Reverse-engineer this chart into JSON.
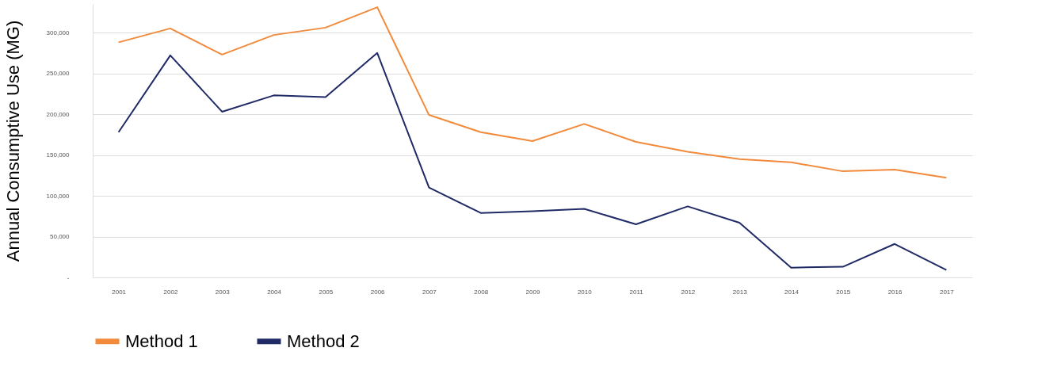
{
  "chart_data": {
    "type": "line",
    "ylabel": "Annual Consumptive Use (MG)",
    "categories": [
      "2001",
      "2002",
      "2003",
      "2004",
      "2005",
      "2006",
      "2007",
      "2008",
      "2009",
      "2010",
      "2011",
      "2012",
      "2013",
      "2014",
      "2015",
      "2016",
      "2017"
    ],
    "series": [
      {
        "name": "Method 1",
        "color": "#f28a3c",
        "values": [
          288000,
          305000,
          273000,
          297000,
          306000,
          331000,
          199000,
          178000,
          167000,
          188000,
          166000,
          154000,
          145000,
          141000,
          130000,
          132000,
          122000
        ]
      },
      {
        "name": "Method 2",
        "color": "#1f2a66",
        "values": [
          178000,
          272000,
          203000,
          223000,
          221000,
          275000,
          110000,
          79000,
          81000,
          84000,
          65000,
          87000,
          67000,
          12000,
          13000,
          41000,
          9000
        ]
      }
    ],
    "ylim": [
      0,
      335000
    ],
    "yticks": [
      {
        "value": 0,
        "label": "-"
      },
      {
        "value": 50000,
        "label": "50,000"
      },
      {
        "value": 100000,
        "label": "100,000"
      },
      {
        "value": 150000,
        "label": "150,000"
      },
      {
        "value": 200000,
        "label": "200,000"
      },
      {
        "value": 250000,
        "label": "250,000"
      },
      {
        "value": 300000,
        "label": "300,000"
      }
    ],
    "grid": "y",
    "legend": "bottom",
    "marker": "none",
    "line_style": "solid"
  }
}
